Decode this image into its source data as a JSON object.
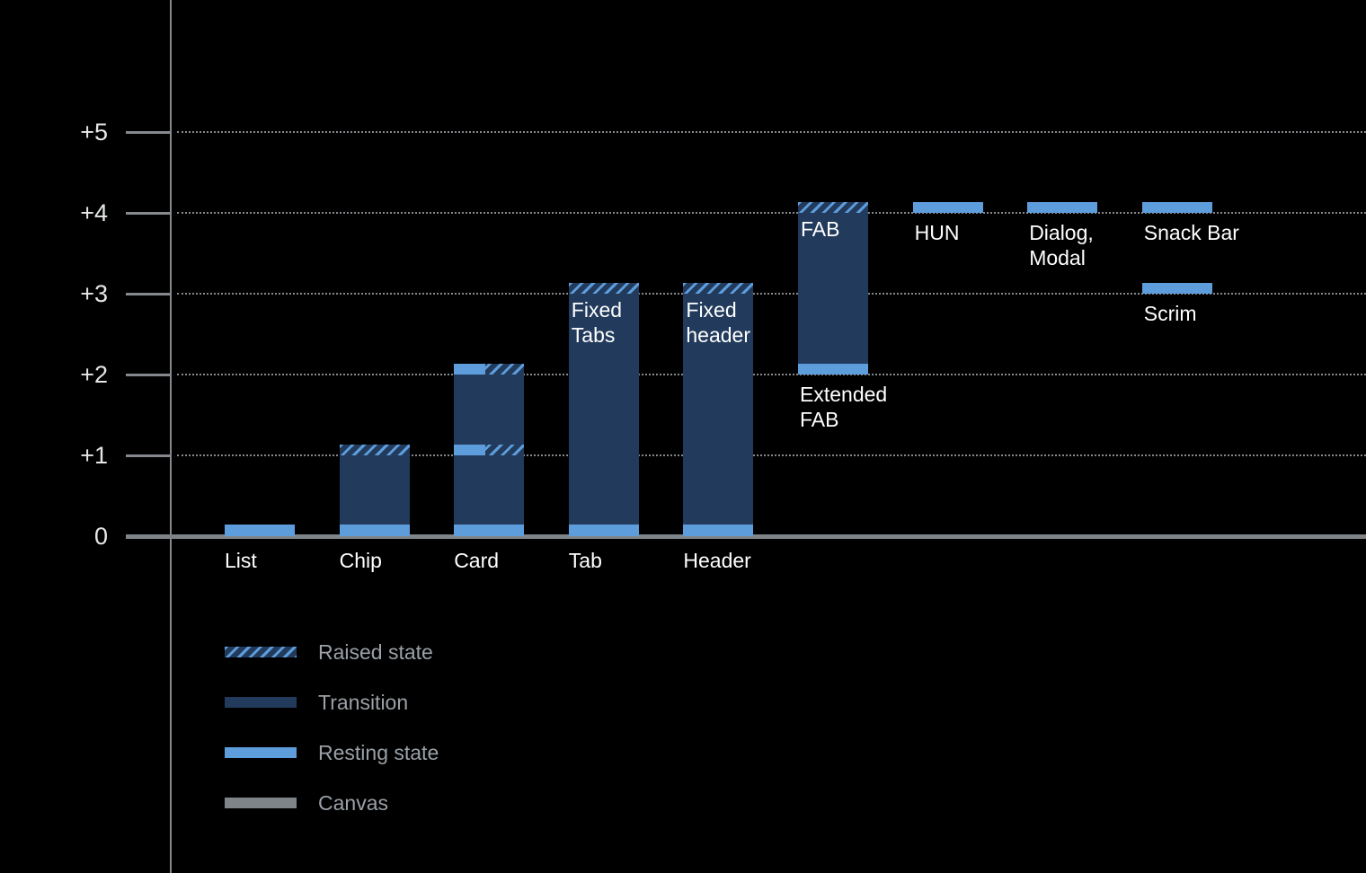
{
  "colors": {
    "background": "#000000",
    "resting": "#5E9DDC",
    "transition": "#223B5C",
    "canvas": "#7F8489",
    "grid": "#85898E",
    "tick_text": "#E4E6E8",
    "bar_label": "#FFFFFF",
    "legend_text": "#9AA0A6"
  },
  "chart_data": {
    "type": "bar",
    "title": "",
    "xlabel": "",
    "ylabel": "",
    "ylim": [
      0,
      5.5
    ],
    "grid": "dotted horizontal lines at each integer elevation level",
    "legend_position": "bottom-left",
    "y_axis": {
      "ticks": [
        "+5",
        "+4",
        "+3",
        "+2",
        "+1",
        "0"
      ],
      "values": [
        5,
        4,
        3,
        2,
        1,
        0
      ]
    },
    "legend": [
      {
        "label": "Raised state",
        "style": "raised"
      },
      {
        "label": "Transition",
        "style": "transition"
      },
      {
        "label": "Resting state",
        "style": "resting"
      },
      {
        "label": "Canvas",
        "style": "canvas"
      }
    ],
    "columns": [
      {
        "slot": 0,
        "name": "List",
        "segments": [
          {
            "style": "resting",
            "from": 0,
            "to": 0.15
          }
        ],
        "labels": [
          {
            "text": "List",
            "anchor": "axis"
          }
        ]
      },
      {
        "slot": 1,
        "name": "Chip",
        "segments": [
          {
            "style": "resting",
            "from": 0,
            "to": 0.15
          },
          {
            "style": "transition",
            "from": 0.15,
            "to": 1.0
          },
          {
            "style": "raised",
            "from": 1.0,
            "to": 1.13
          }
        ],
        "labels": [
          {
            "text": "Chip",
            "anchor": "axis"
          }
        ]
      },
      {
        "slot": 2,
        "name": "Card",
        "segments": [
          {
            "style": "resting",
            "from": 0,
            "to": 0.15
          },
          {
            "style": "transition",
            "from": 0.15,
            "to": 1.0
          },
          {
            "style": "resting-raised",
            "from": 1.0,
            "to": 1.13
          },
          {
            "style": "transition",
            "from": 1.13,
            "to": 2.0
          },
          {
            "style": "resting-raised",
            "from": 2.0,
            "to": 2.13
          }
        ],
        "labels": [
          {
            "text": "Card",
            "anchor": "axis"
          }
        ]
      },
      {
        "slot": 3,
        "name": "Tab",
        "segments": [
          {
            "style": "resting",
            "from": 0,
            "to": 0.15
          },
          {
            "style": "transition",
            "from": 0.15,
            "to": 3.0
          },
          {
            "style": "raised",
            "from": 3.0,
            "to": 3.13
          }
        ],
        "labels": [
          {
            "text": "Tab",
            "anchor": "axis"
          },
          {
            "text": "Fixed\nTabs",
            "anchor": "inside-top"
          }
        ]
      },
      {
        "slot": 4,
        "name": "Header",
        "segments": [
          {
            "style": "resting",
            "from": 0,
            "to": 0.15
          },
          {
            "style": "transition",
            "from": 0.15,
            "to": 3.0
          },
          {
            "style": "raised",
            "from": 3.0,
            "to": 3.13
          }
        ],
        "labels": [
          {
            "text": "Header",
            "anchor": "axis"
          },
          {
            "text": "Fixed\nheader",
            "anchor": "inside-top"
          }
        ]
      },
      {
        "slot": 5,
        "name": "FAB / Extended FAB",
        "segments": [
          {
            "style": "resting",
            "from": 2.0,
            "to": 2.13
          },
          {
            "style": "transition",
            "from": 2.13,
            "to": 4.0
          },
          {
            "style": "raised",
            "from": 4.0,
            "to": 4.13
          }
        ],
        "labels": [
          {
            "text": "FAB",
            "anchor": "inside-top"
          },
          {
            "text": "Extended\nFAB",
            "anchor": "below"
          }
        ]
      },
      {
        "slot": 6,
        "name": "HUN",
        "segments": [
          {
            "style": "resting",
            "from": 4.0,
            "to": 4.13
          }
        ],
        "labels": [
          {
            "text": "HUN",
            "anchor": "below"
          }
        ]
      },
      {
        "slot": 7,
        "name": "Dialog, Modal",
        "segments": [
          {
            "style": "resting",
            "from": 4.0,
            "to": 4.13
          }
        ],
        "labels": [
          {
            "text": "Dialog,\nModal",
            "anchor": "below"
          }
        ]
      },
      {
        "slot": 8,
        "name": "Snack Bar",
        "segments": [
          {
            "style": "resting",
            "from": 4.0,
            "to": 4.13
          }
        ],
        "labels": [
          {
            "text": "Snack Bar",
            "anchor": "below"
          }
        ]
      },
      {
        "slot": 8,
        "name": "Scrim",
        "segments": [
          {
            "style": "resting",
            "from": 3.0,
            "to": 3.13
          }
        ],
        "labels": [
          {
            "text": "Scrim",
            "anchor": "below"
          }
        ]
      }
    ]
  }
}
